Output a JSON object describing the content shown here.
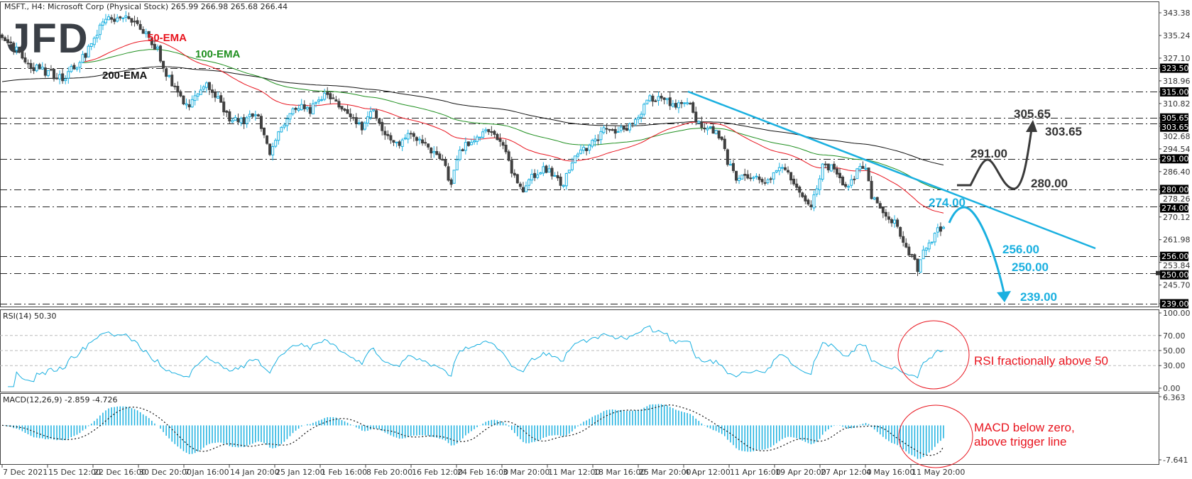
{
  "header": {
    "symbol_line": "MSFT., H4:  Microsoft Corp (Physical Stock)  265.99 266.98 265.68 266.44",
    "last_bar": {
      "open": 265.99,
      "high": 266.98,
      "low": 265.68,
      "close": 266.44
    }
  },
  "logo": {
    "text": "JFD"
  },
  "colors": {
    "bull": "#1ab0e0",
    "bear": "#404040",
    "ema50": "#e8141e",
    "ema100": "#1f8f1f",
    "ema200": "#111111",
    "trendline": "#1ab0e0",
    "annotation_red": "#e8141e"
  },
  "chart_data": [
    {
      "type": "candlestick",
      "symbol": "MSFT.",
      "timeframe": "H4",
      "ylim": [
        239.0,
        343.38
      ],
      "y_ticks": [
        "343.38",
        "335.24",
        "327.10",
        "318.96",
        "310.82",
        "302.68",
        "294.54",
        "286.40",
        "278.26",
        "270.12",
        "261.98",
        "253.84",
        "245.70"
      ],
      "levels": [
        "323.50",
        "315.00",
        "305.65",
        "303.65",
        "291.00",
        "280.00",
        "274.00",
        "256.00",
        "250.00",
        "239.00"
      ],
      "close_path": [
        [
          0,
          333
        ],
        [
          5,
          330
        ],
        [
          11,
          324
        ],
        [
          16,
          322
        ],
        [
          21,
          320
        ],
        [
          26,
          325
        ],
        [
          30,
          330
        ],
        [
          34,
          338
        ],
        [
          38,
          342
        ],
        [
          42,
          341
        ],
        [
          46,
          341
        ],
        [
          50,
          336
        ],
        [
          54,
          330
        ],
        [
          57,
          322
        ],
        [
          60,
          316
        ],
        [
          64,
          310
        ],
        [
          68,
          313
        ],
        [
          71,
          318
        ],
        [
          75,
          312
        ],
        [
          79,
          306
        ],
        [
          84,
          304
        ],
        [
          88,
          308
        ],
        [
          91,
          300
        ],
        [
          93,
          292
        ],
        [
          95,
          298
        ],
        [
          99,
          305
        ],
        [
          103,
          310
        ],
        [
          107,
          308
        ],
        [
          110,
          312
        ],
        [
          113,
          314
        ],
        [
          117,
          310
        ],
        [
          121,
          305
        ],
        [
          125,
          302
        ],
        [
          129,
          309
        ],
        [
          133,
          300
        ],
        [
          137,
          296
        ],
        [
          142,
          300
        ],
        [
          147,
          296
        ],
        [
          153,
          290
        ],
        [
          156,
          282
        ],
        [
          159,
          293
        ],
        [
          163,
          298
        ],
        [
          168,
          300
        ],
        [
          171,
          301
        ],
        [
          174,
          296
        ],
        [
          176,
          290
        ],
        [
          179,
          282
        ],
        [
          181,
          279
        ],
        [
          184,
          284
        ],
        [
          188,
          288
        ],
        [
          192,
          284
        ],
        [
          195,
          281
        ],
        [
          197,
          288
        ],
        [
          200,
          292
        ],
        [
          205,
          297
        ],
        [
          210,
          302
        ],
        [
          216,
          301
        ],
        [
          221,
          306
        ],
        [
          225,
          313
        ],
        [
          229,
          313
        ],
        [
          233,
          310
        ],
        [
          237,
          312
        ],
        [
          239,
          311
        ],
        [
          242,
          303
        ],
        [
          246,
          302
        ],
        [
          250,
          298
        ],
        [
          252,
          290
        ],
        [
          255,
          283
        ],
        [
          260,
          285
        ],
        [
          266,
          282
        ],
        [
          271,
          289
        ],
        [
          275,
          282
        ],
        [
          279,
          275
        ],
        [
          281,
          274
        ],
        [
          285,
          289
        ],
        [
          289,
          288
        ],
        [
          293,
          281
        ],
        [
          297,
          286
        ],
        [
          300,
          289
        ],
        [
          302,
          278
        ],
        [
          306,
          272
        ],
        [
          310,
          268
        ],
        [
          314,
          259
        ],
        [
          318,
          252
        ],
        [
          321,
          260
        ],
        [
          325,
          265
        ],
        [
          327,
          266.44
        ]
      ],
      "indicators": [
        {
          "name": "50-EMA",
          "period": 50
        },
        {
          "name": "100-EMA",
          "period": 100
        },
        {
          "name": "200-EMA",
          "period": 200
        }
      ],
      "trendline": {
        "from_price": 315.0,
        "to_price": 259.0
      },
      "annotations": {
        "bull_scenario": [
          "291.00",
          "280.00",
          "305.65",
          "303.65"
        ],
        "bear_scenario": [
          "274.00",
          "256.00",
          "250.00",
          "239.00"
        ]
      }
    },
    {
      "type": "line",
      "title": "RSI(14) 50.30",
      "value": 50.3,
      "ylim": [
        0,
        100
      ],
      "levels": [
        70,
        50,
        30
      ],
      "y_ticks": [
        "100.00",
        "70.00",
        "50.00",
        "30.00",
        "0.00"
      ],
      "note": "RSI fractionally above 50"
    },
    {
      "type": "bar",
      "title": "MACD(12,26,9) -2.859 -4.726",
      "macd": -2.859,
      "signal": -4.726,
      "ylim": [
        -7.641,
        6.363
      ],
      "y_ticks": [
        "6.363",
        "-7.641"
      ],
      "note_lines": [
        "MACD below zero,",
        "above trigger line"
      ]
    }
  ],
  "x_axis": {
    "labels": [
      "7 Dec 2021",
      "15 Dec 12:00",
      "22 Dec 16:00",
      "30 Dec 20:00",
      "7 Jan 16:00",
      "14 Jan 20:00",
      "25 Jan 12:00",
      "1 Feb 16:00",
      "8 Feb 20:00",
      "16 Feb 12:00",
      "24 Feb 16:00",
      "3 Mar 20:00",
      "11 Mar 12:00",
      "18 Mar 16:00",
      "25 Mar 20:00",
      "4 Apr 12:00",
      "11 Apr 16:00",
      "19 Apr 20:00",
      "27 Apr 12:00",
      "4 May 16:00",
      "11 May 20:00"
    ]
  }
}
